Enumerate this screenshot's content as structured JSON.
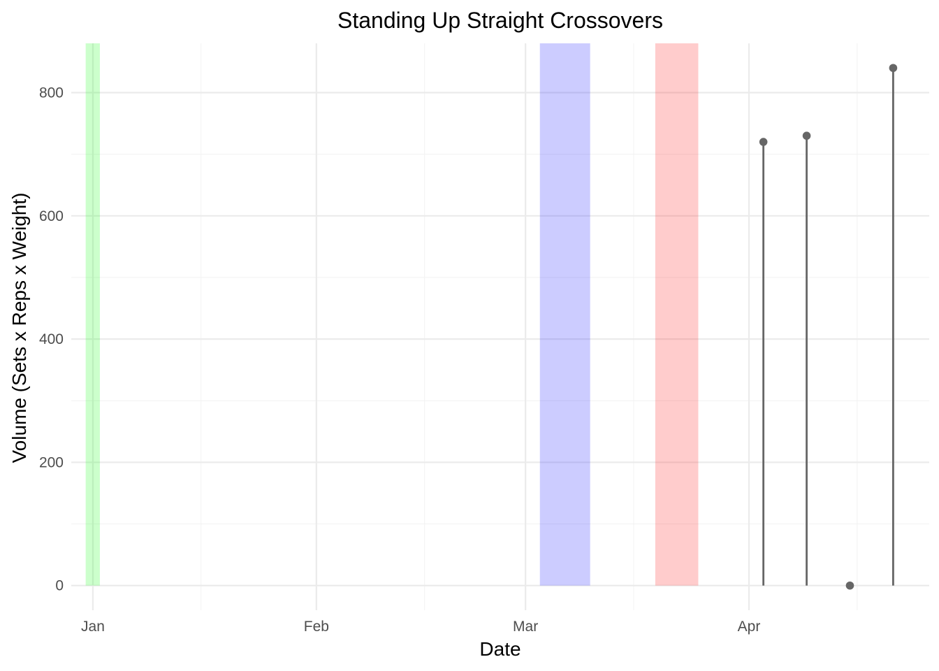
{
  "chart_data": {
    "type": "lollipop",
    "title": "Standing Up Straight Crossovers",
    "xlabel": "Date",
    "ylabel": "Volume (Sets x Reps x Weight)",
    "x_type": "date",
    "xlim": [
      "2023-12-29",
      "2024-04-26"
    ],
    "ylim": [
      -40,
      880
    ],
    "x_ticks": [
      {
        "date": "2024-01-01",
        "label": "Jan"
      },
      {
        "date": "2024-02-01",
        "label": "Feb"
      },
      {
        "date": "2024-03-01",
        "label": "Mar"
      },
      {
        "date": "2024-04-01",
        "label": "Apr"
      }
    ],
    "x_minor_ticks": [
      "2024-01-16",
      "2024-02-16",
      "2024-03-16",
      "2024-04-16"
    ],
    "y_ticks": [
      0,
      200,
      400,
      600,
      800
    ],
    "y_minor_ticks": [
      100,
      300,
      500,
      700
    ],
    "bands": [
      {
        "start": "2023-12-31",
        "end": "2024-01-01",
        "color": "#00ff00",
        "opacity": 0.2
      },
      {
        "start": "2024-03-03",
        "end": "2024-03-09",
        "color": "#0000ff",
        "opacity": 0.2
      },
      {
        "start": "2024-03-19",
        "end": "2024-03-24",
        "color": "#ff0000",
        "opacity": 0.2
      }
    ],
    "points": [
      {
        "x": "2024-04-03",
        "y": 720
      },
      {
        "x": "2024-04-09",
        "y": 730
      },
      {
        "x": "2024-04-15",
        "y": 0
      },
      {
        "x": "2024-04-21",
        "y": 840
      }
    ],
    "point_color": "#666666",
    "grid": true,
    "legend": "none"
  }
}
